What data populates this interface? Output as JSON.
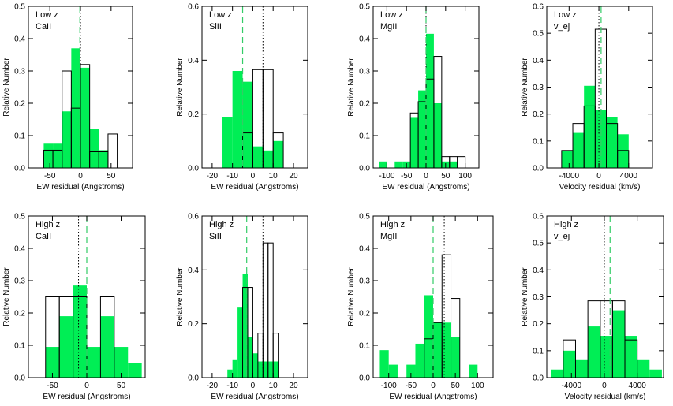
{
  "colors": {
    "fill": "#00ee55",
    "line": "#000000",
    "green_dash": "#33cc66"
  },
  "chart_data": [
    {
      "type": "bar",
      "label_lines": [
        "Low z",
        "CaII"
      ],
      "xlabel": "EW residual (Angstroms)",
      "ylabel": "Relative Number",
      "xlim": [
        -85,
        85
      ],
      "ylim": [
        0,
        0.5
      ],
      "xticks": [
        -50,
        0,
        50
      ],
      "yticks": [
        0.0,
        0.1,
        0.2,
        0.3,
        0.4,
        0.5
      ],
      "ytick_labels": [
        "0.0",
        "0.1",
        "0.2",
        "0.3",
        "0.4",
        "0.5"
      ],
      "bin_edges": [
        -60,
        -45,
        -30,
        -15,
        0,
        15,
        30,
        45,
        60
      ],
      "filled_values": [
        0.075,
        0.075,
        0.175,
        0.37,
        0.31,
        0.12,
        0.055,
        0
      ],
      "outline_values": [
        0.055,
        0.055,
        0.3,
        0.185,
        0.32,
        0.05,
        0.05,
        0.105
      ],
      "mean_filled": -1,
      "mean_outline": 0
    },
    {
      "type": "bar",
      "label_lines": [
        "Low z",
        "SiII"
      ],
      "xlabel": "EW residual (Angstroms)",
      "ylabel": "Relative Number",
      "xlim": [
        -25,
        27
      ],
      "ylim": [
        0,
        0.6
      ],
      "xticks": [
        -20,
        -10,
        0,
        10,
        20
      ],
      "yticks": [
        0.0,
        0.2,
        0.4,
        0.6
      ],
      "ytick_labels": [
        "0.0",
        "0.2",
        "0.4",
        "0.6"
      ],
      "bin_edges": [
        -15,
        -10,
        -5,
        0,
        5,
        10,
        15
      ],
      "filled_values": [
        0.19,
        0.36,
        0.32,
        0.08,
        0.065,
        0.1
      ],
      "outline_values": [
        0,
        0,
        0.13,
        0.365,
        0.365,
        0.13
      ],
      "mean_filled": -5,
      "mean_outline": 5
    },
    {
      "type": "bar",
      "label_lines": [
        "Low z",
        "MgII"
      ],
      "xlabel": "EW residual (Angstroms)",
      "ylabel": "Relative Number",
      "xlim": [
        -135,
        135
      ],
      "ylim": [
        0,
        0.5
      ],
      "xticks": [
        -100,
        -50,
        0,
        50,
        100
      ],
      "yticks": [
        0.0,
        0.1,
        0.2,
        0.3,
        0.4,
        0.5
      ],
      "ytick_labels": [
        "0.0",
        "0.1",
        "0.2",
        "0.3",
        "0.4",
        "0.5"
      ],
      "bin_edges": [
        -120,
        -100,
        -80,
        -60,
        -40,
        -20,
        0,
        20,
        40,
        60,
        80
      ],
      "filled_values": [
        0.02,
        0,
        0.02,
        0.02,
        0.155,
        0.24,
        0.415,
        0.2,
        0.02,
        0.02
      ],
      "outline_values": [
        0,
        0,
        0,
        0,
        0.17,
        0.205,
        0.275,
        0.345,
        0.035,
        0.035
      ],
      "extra_outline_bins": [
        {
          "x0": 80,
          "x1": 100,
          "value": 0.035
        }
      ],
      "mean_filled": 0,
      "mean_outline": 0
    },
    {
      "type": "bar",
      "label_lines": [
        "Low z",
        "v_ej"
      ],
      "xlabel": "Velocity residual (km/s)",
      "ylabel": "Relative Number",
      "xlim": [
        -7000,
        7200
      ],
      "ylim": [
        0,
        0.6
      ],
      "xticks": [
        -4000,
        0,
        4000
      ],
      "yticks": [
        0.0,
        0.1,
        0.2,
        0.3,
        0.4,
        0.5,
        0.6
      ],
      "ytick_labels": [
        "0.0",
        "0.1",
        "0.2",
        "0.3",
        "0.4",
        "0.5",
        "0.6"
      ],
      "bin_edges": [
        -5000,
        -3500,
        -2000,
        -500,
        1000,
        2500,
        4000
      ],
      "filled_values": [
        0.065,
        0.13,
        0.305,
        0.215,
        0.19,
        0.125
      ],
      "outline_values": [
        0.065,
        0.165,
        0.23,
        0.515,
        0.165,
        0.065
      ],
      "mean_filled": 300,
      "mean_outline": 0
    },
    {
      "type": "bar",
      "label_lines": [
        "High z",
        "CaII"
      ],
      "xlabel": "EW residual (Angstroms)",
      "ylabel": "Relative Number",
      "xlim": [
        -85,
        85
      ],
      "ylim": [
        0,
        0.5
      ],
      "xticks": [
        -50,
        0,
        50
      ],
      "yticks": [
        0.0,
        0.1,
        0.2,
        0.3,
        0.4,
        0.5
      ],
      "ytick_labels": [
        "0.0",
        "0.1",
        "0.2",
        "0.3",
        "0.4",
        "0.5"
      ],
      "bin_edges": [
        -60,
        -40,
        -20,
        0,
        20,
        40,
        60,
        80
      ],
      "filled_values": [
        0.095,
        0.19,
        0.285,
        0.095,
        0.19,
        0.095,
        0.045
      ],
      "outline_values": [
        0.25,
        0.25,
        0.25,
        0,
        0.25,
        0,
        0
      ],
      "mean_filled": 0,
      "mean_outline": -12
    },
    {
      "type": "bar",
      "label_lines": [
        "High z",
        "SiII"
      ],
      "xlabel": "EW residual (Angstroms)",
      "ylabel": "Relative Number",
      "xlim": [
        -25,
        27
      ],
      "ylim": [
        0,
        0.6
      ],
      "xticks": [
        -20,
        -10,
        0,
        10,
        20
      ],
      "yticks": [
        0.0,
        0.2,
        0.4,
        0.6
      ],
      "ytick_labels": [
        "0.0",
        "0.2",
        "0.4",
        "0.6"
      ],
      "bin_edges": [
        -12.5,
        -10,
        -7.5,
        -5,
        -2.5,
        0,
        2.5,
        5,
        7.5,
        10,
        12.5,
        15
      ],
      "filled_values": [
        0.03,
        0.065,
        0.26,
        0.385,
        0.15,
        0.09,
        0.06,
        0.06,
        0.06,
        0.06,
        0
      ],
      "outline_values": [
        0,
        0,
        0,
        0.335,
        0.335,
        0,
        0.165,
        0.5,
        0.5,
        0.165,
        0
      ],
      "mean_filled": -3,
      "mean_outline": 5
    },
    {
      "type": "bar",
      "label_lines": [
        "High z",
        "MgII"
      ],
      "xlabel": "EW residual (Angstroms)",
      "ylabel": "Relative Number",
      "xlim": [
        -135,
        135
      ],
      "ylim": [
        0,
        0.5
      ],
      "xticks": [
        -100,
        -50,
        0,
        50,
        100
      ],
      "yticks": [
        0.0,
        0.1,
        0.2,
        0.3,
        0.4,
        0.5
      ],
      "ytick_labels": [
        "0.0",
        "0.1",
        "0.2",
        "0.3",
        "0.4",
        "0.5"
      ],
      "bin_edges": [
        -120,
        -100,
        -80,
        -60,
        -40,
        -20,
        0,
        20,
        40,
        60,
        80,
        100
      ],
      "filled_values": [
        0.085,
        0.04,
        0,
        0.04,
        0.105,
        0.255,
        0.17,
        0.17,
        0.125,
        0,
        0.04
      ],
      "outline_values": [
        0,
        0,
        0,
        0,
        0,
        0.12,
        0.17,
        0.38,
        0.245,
        0,
        0
      ],
      "mean_filled": 0,
      "mean_outline": 25
    },
    {
      "type": "bar",
      "label_lines": [
        "High z",
        "v_ej"
      ],
      "xlabel": "Velocity residual (km/s)",
      "ylabel": "Relative Number",
      "xlim": [
        -7000,
        7200
      ],
      "ylim": [
        0,
        0.6
      ],
      "xticks": [
        -4000,
        0,
        4000
      ],
      "yticks": [
        0.0,
        0.1,
        0.2,
        0.3,
        0.4,
        0.5,
        0.6
      ],
      "ytick_labels": [
        "0.0",
        "0.1",
        "0.2",
        "0.3",
        "0.4",
        "0.5",
        "0.6"
      ],
      "bin_edges": [
        -6500,
        -5000,
        -3500,
        -2000,
        -500,
        1000,
        2500,
        4000,
        5500,
        7000
      ],
      "filled_values": [
        0.03,
        0.1,
        0.065,
        0.19,
        0.155,
        0.25,
        0.155,
        0.065,
        0.03
      ],
      "outline_values": [
        0,
        0.14,
        0,
        0.285,
        0.285,
        0.285,
        0.14,
        0,
        0
      ],
      "mean_filled": 700,
      "mean_outline": 0
    }
  ]
}
